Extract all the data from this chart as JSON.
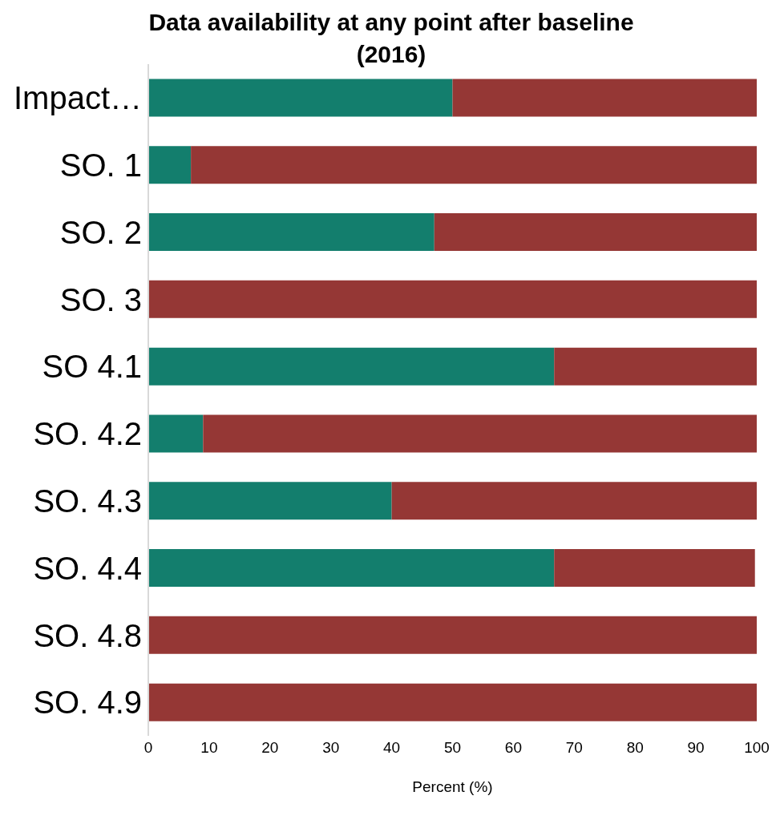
{
  "chart_data": {
    "type": "bar",
    "orientation": "horizontal",
    "stacked": true,
    "title": "Data availability at any point after baseline (2016)",
    "xlabel": "Percent (%)",
    "categories": [
      "Impact…",
      "SO. 1",
      "SO. 2",
      "SO. 3",
      "SO 4.1",
      "SO. 4.2",
      "SO. 4.3",
      "SO. 4.4",
      "SO. 4.8",
      "SO. 4.9"
    ],
    "series": [
      {
        "color": "#137e6d",
        "values": [
          50,
          7,
          47,
          0,
          66.7,
          9,
          40,
          66.7,
          0,
          0
        ]
      },
      {
        "color": "#953735",
        "values": [
          50,
          93,
          53,
          100,
          33.3,
          91,
          60,
          33,
          100,
          100
        ]
      }
    ],
    "xlim": [
      0,
      100
    ],
    "xticks": [
      0,
      10,
      20,
      30,
      40,
      50,
      60,
      70,
      80,
      90,
      100
    ]
  }
}
